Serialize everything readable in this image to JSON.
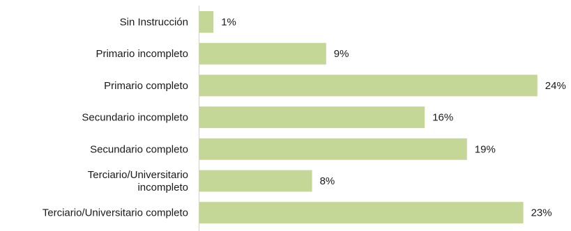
{
  "chart_data": {
    "type": "bar",
    "orientation": "horizontal",
    "categories": [
      "Sin Instrucción",
      "Primario incompleto",
      "Primario completo",
      "Secundario incompleto",
      "Secundario completo",
      "Terciario/Universitario incompleto",
      "Terciario/Universitario completo"
    ],
    "category_lines": [
      [
        "Sin Instrucción"
      ],
      [
        "Primario incompleto"
      ],
      [
        "Primario completo"
      ],
      [
        "Secundario incompleto"
      ],
      [
        "Secundario completo"
      ],
      [
        "Terciario/Universitario",
        "incompleto"
      ],
      [
        "Terciario/Universitario completo"
      ]
    ],
    "values": [
      1,
      9,
      24,
      16,
      19,
      8,
      23
    ],
    "value_labels": [
      "1%",
      "9%",
      "24%",
      "16%",
      "19%",
      "8%",
      "23%"
    ],
    "unit": "%",
    "title": "",
    "xlabel": "",
    "ylabel": "",
    "xlim": [
      0,
      24
    ],
    "grid": false,
    "legend": "none",
    "colors": {
      "bar": "#c5d797",
      "axis": "#d0d0d0",
      "text": "#1a1a1a"
    }
  }
}
